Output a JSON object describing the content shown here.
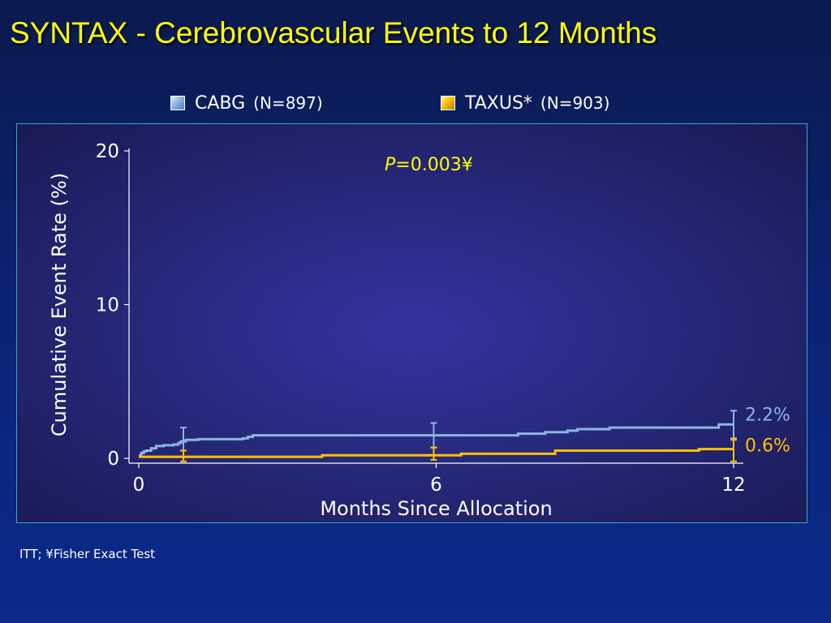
{
  "slide": {
    "title": "SYNTAX - Cerebrovascular Events to 12 Months",
    "footnote": "ITT; ¥Fisher Exact Test"
  },
  "legend": [
    {
      "name": "CABG",
      "n_label": "(N=897)",
      "color": "#8db4e2"
    },
    {
      "name": "TAXUS*",
      "n_label": "(N=903)",
      "color": "#ffc000"
    }
  ],
  "chart_data": {
    "type": "line",
    "step": true,
    "title": "",
    "xlabel": "Months Since Allocation",
    "ylabel": "Cumulative Event Rate (%)",
    "xlim": [
      0,
      12
    ],
    "ylim": [
      0,
      20
    ],
    "x_ticks": [
      0,
      6,
      12
    ],
    "y_ticks": [
      0,
      10,
      20
    ],
    "grid": false,
    "p_value": {
      "prefix": "P",
      "text": "=0.003¥"
    },
    "series": [
      {
        "name": "CABG",
        "color": "#8db4e2",
        "end_label": "2.2%",
        "points": [
          [
            0,
            0.2
          ],
          [
            0.05,
            0.35
          ],
          [
            0.1,
            0.45
          ],
          [
            0.15,
            0.5
          ],
          [
            0.25,
            0.65
          ],
          [
            0.35,
            0.8
          ],
          [
            0.5,
            0.85
          ],
          [
            0.7,
            0.9
          ],
          [
            0.8,
            1.0
          ],
          [
            0.85,
            1.1
          ],
          [
            0.95,
            1.2
          ],
          [
            1.2,
            1.25
          ],
          [
            2.1,
            1.3
          ],
          [
            2.2,
            1.4
          ],
          [
            2.3,
            1.5
          ],
          [
            6.0,
            1.5
          ],
          [
            7.65,
            1.6
          ],
          [
            8.2,
            1.7
          ],
          [
            8.65,
            1.8
          ],
          [
            8.85,
            1.9
          ],
          [
            9.5,
            2.0
          ],
          [
            11.7,
            2.2
          ],
          [
            12.0,
            2.2
          ]
        ],
        "error_bars": [
          {
            "x": 0.9,
            "y": 1.2,
            "low": 0.5,
            "high": 2.0
          },
          {
            "x": 5.95,
            "y": 1.5,
            "low": 0.7,
            "high": 2.3
          },
          {
            "x": 12.0,
            "y": 2.2,
            "low": 1.2,
            "high": 3.1
          }
        ]
      },
      {
        "name": "TAXUS*",
        "color": "#ffc000",
        "end_label": "0.6%",
        "points": [
          [
            0,
            0.1
          ],
          [
            1.0,
            0.1
          ],
          [
            3.7,
            0.2
          ],
          [
            6.5,
            0.3
          ],
          [
            8.4,
            0.5
          ],
          [
            11.3,
            0.6
          ],
          [
            12.0,
            0.6
          ]
        ],
        "error_bars": [
          {
            "x": 0.9,
            "y": 0.1,
            "low": -0.2,
            "high": 0.5
          },
          {
            "x": 5.95,
            "y": 0.3,
            "low": -0.1,
            "high": 0.7
          },
          {
            "x": 12.0,
            "y": 0.6,
            "low": -0.2,
            "high": 1.3
          }
        ]
      }
    ]
  }
}
